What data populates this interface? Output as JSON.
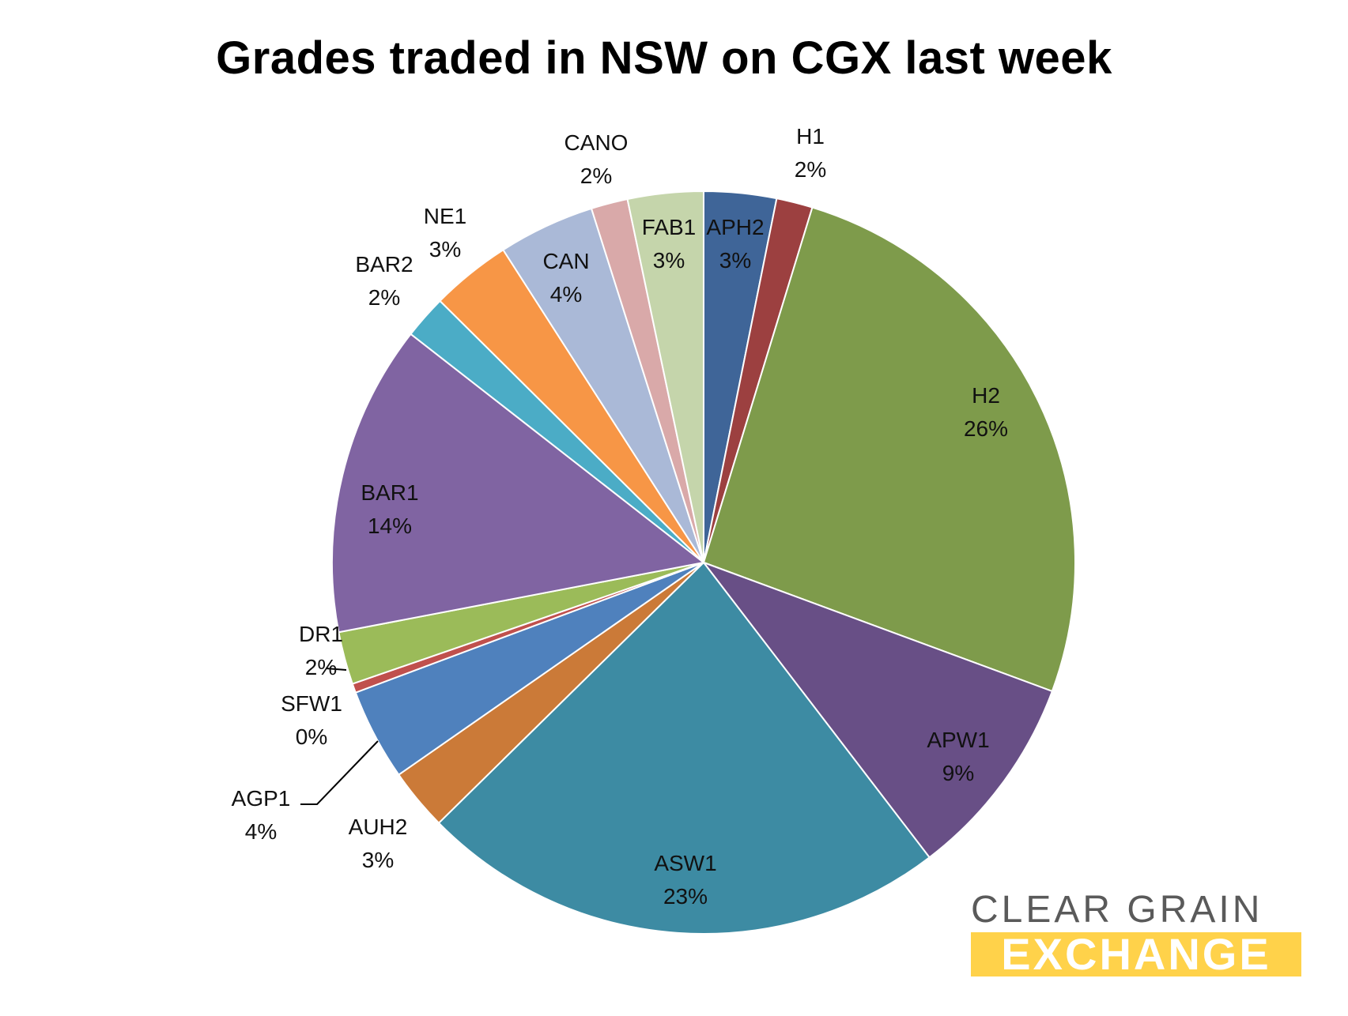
{
  "chart_data": {
    "type": "pie",
    "title": "Grades traded in NSW on CGX last week",
    "start_angle_deg": 0,
    "direction": "clockwise",
    "slices": [
      {
        "name": "APH2",
        "value": 3.16,
        "label": "3%",
        "color": "#3f6598"
      },
      {
        "name": "H1",
        "value": 1.58,
        "label": "2%",
        "color": "#9c4040"
      },
      {
        "name": "H2",
        "value": 26.0,
        "label": "26%",
        "color": "#7e9b4b"
      },
      {
        "name": "APW1",
        "value": 9.0,
        "label": "9%",
        "color": "#684f86"
      },
      {
        "name": "ASW1",
        "value": 23.1,
        "label": "23%",
        "color": "#3d8ba3"
      },
      {
        "name": "AUH2",
        "value": 2.7,
        "label": "3%",
        "color": "#cb7a38"
      },
      {
        "name": "AGP1",
        "value": 4.0,
        "label": "4%",
        "color": "#4f81bd"
      },
      {
        "name": "SFW1",
        "value": 0.4,
        "label": "0%",
        "color": "#c0504d"
      },
      {
        "name": "DR1",
        "value": 2.3,
        "label": "2%",
        "color": "#9bbb59"
      },
      {
        "name": "BAR1",
        "value": 13.6,
        "label": "14%",
        "color": "#8064a2"
      },
      {
        "name": "BAR2",
        "value": 1.9,
        "label": "2%",
        "color": "#4bacc6"
      },
      {
        "name": "NE1",
        "value": 3.5,
        "label": "3%",
        "color": "#f79646"
      },
      {
        "name": "CAN",
        "value": 4.2,
        "label": "4%",
        "color": "#aab9d7"
      },
      {
        "name": "CANO",
        "value": 1.6,
        "label": "2%",
        "color": "#d9a9a9"
      },
      {
        "name": "FAB1",
        "value": 3.3,
        "label": "3%",
        "color": "#c5d5ab"
      }
    ]
  },
  "logo": {
    "line1": "CLEAR GRAIN",
    "line2": "EXCHANGE"
  }
}
